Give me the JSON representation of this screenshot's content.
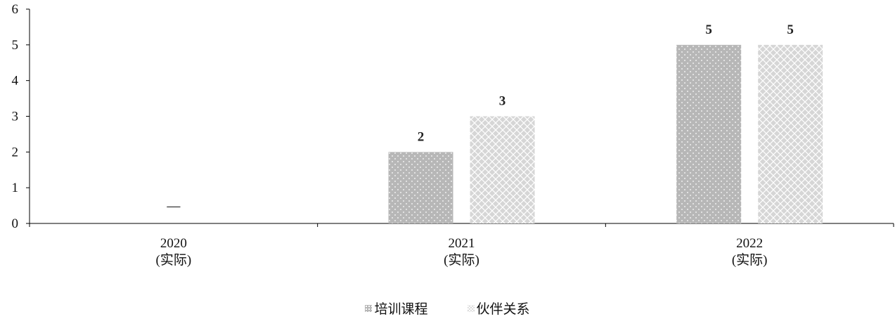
{
  "chart_data": {
    "type": "bar",
    "categories": [
      "2020\n(实际)",
      "2021\n(实际)",
      "2022\n(实际)"
    ],
    "series": [
      {
        "name": "培训课程",
        "values": [
          null,
          2,
          5
        ],
        "color": "#b7b7b7",
        "pattern": "dots"
      },
      {
        "name": "伙伴关系",
        "values": [
          null,
          3,
          5
        ],
        "color": "#d6d6d6",
        "pattern": "cross"
      }
    ],
    "data_labels": [
      [
        "",
        "2",
        "5"
      ],
      [
        "",
        "3",
        "5"
      ]
    ],
    "missing_marker": "—",
    "ylim": [
      0,
      6
    ],
    "yticks": [
      "0",
      "1",
      "2",
      "3",
      "4",
      "5",
      "6"
    ],
    "grid": false,
    "legend_position": "bottom-center"
  },
  "legend": {
    "items": [
      {
        "label": "培训课程"
      },
      {
        "label": "伙伴关系"
      }
    ]
  }
}
